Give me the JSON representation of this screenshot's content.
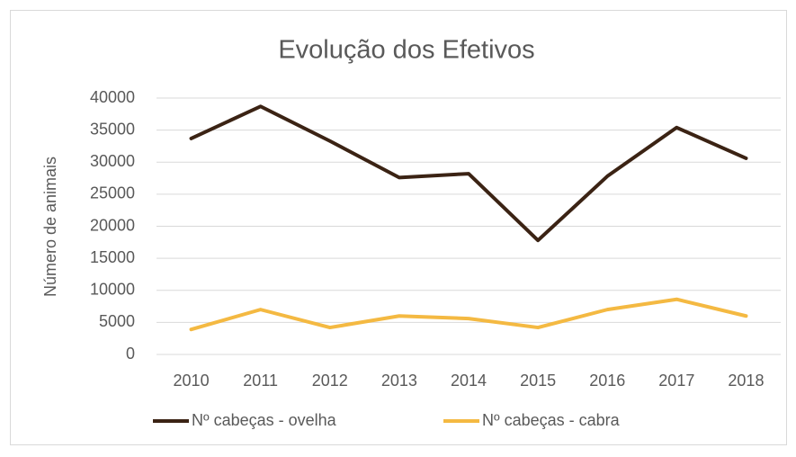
{
  "chart_data": {
    "type": "line",
    "title": "Evolução dos Efetivos",
    "y_label": "Número de animais",
    "categories": [
      "2010",
      "2011",
      "2012",
      "2013",
      "2014",
      "2015",
      "2016",
      "2017",
      "2018"
    ],
    "series": [
      {
        "name": "Nº cabeças - ovelha",
        "color": "#3b2314",
        "values": [
          33700,
          38700,
          33300,
          27600,
          28200,
          17800,
          27800,
          35400,
          30600
        ]
      },
      {
        "name": "Nº cabeças - cabra",
        "color": "#f4b942",
        "values": [
          3900,
          7000,
          4200,
          6000,
          5600,
          4200,
          7000,
          8600,
          6000
        ]
      }
    ],
    "ylim": [
      0,
      40000
    ],
    "yticks": [
      0,
      5000,
      10000,
      15000,
      20000,
      25000,
      30000,
      35000,
      40000
    ],
    "grid": true,
    "legend": "bottom"
  }
}
